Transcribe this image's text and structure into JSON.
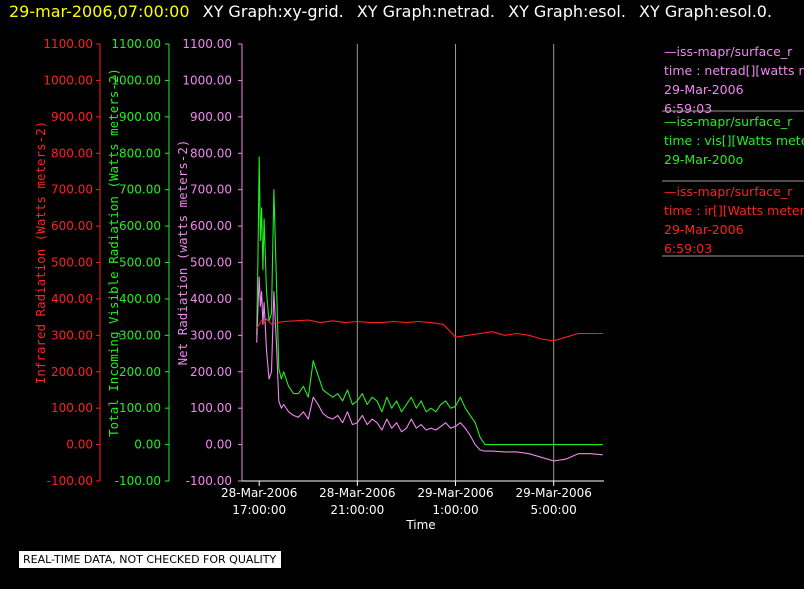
{
  "header": {
    "timestamp": "29-mar-2006,07:00:00",
    "titles": [
      "XY Graph:xy-grid.",
      "XY Graph:netrad.",
      "XY Graph:esol.",
      "XY Graph:esol.0."
    ]
  },
  "notice": "REAL-TIME DATA, NOT CHECKED FOR QUALITY",
  "colors": {
    "ir": "#ff2020",
    "vis": "#22ee22",
    "net": "#ee88ee",
    "grid": "#9a9a9a",
    "axis": "#ffffff"
  },
  "chart_data": {
    "type": "line",
    "xlabel": "Time",
    "x_ticks": [
      {
        "hours": 0,
        "line1": "28-Mar-2006",
        "line2": "17:00:00"
      },
      {
        "hours": 4,
        "line1": "28-Mar-2006",
        "line2": "21:00:00"
      },
      {
        "hours": 8,
        "line1": "29-Mar-2006",
        "line2": "1:00:00"
      },
      {
        "hours": 12,
        "line1": "29-Mar-2006",
        "line2": "5:00:00"
      }
    ],
    "xlim_hours": [
      -0.7,
      14.05
    ],
    "ylim": [
      -100,
      1100
    ],
    "y_ticks": [
      "1100.00",
      "1000.00",
      "900.00",
      "800.00",
      "700.00",
      "600.00",
      "500.00",
      "400.00",
      "300.00",
      "200.00",
      "100.00",
      "0.00",
      "-100.00"
    ],
    "axes": [
      {
        "id": "ir",
        "label": "Infrared Radiation (Watts meters-2)"
      },
      {
        "id": "vis",
        "label": "Total Incoming Visible Radiation (Watts meters-2)"
      },
      {
        "id": "net",
        "label": "Net Radiation (watts meters-2)"
      }
    ],
    "series": [
      {
        "id": "vis",
        "x": [
          -0.1,
          -0.05,
          0.0,
          0.05,
          0.1,
          0.15,
          0.2,
          0.3,
          0.4,
          0.5,
          0.6,
          0.7,
          0.8,
          0.9,
          1.0,
          1.2,
          1.4,
          1.6,
          1.8,
          2.0,
          2.2,
          2.4,
          2.6,
          2.8,
          3.0,
          3.2,
          3.4,
          3.6,
          3.8,
          4.0,
          4.2,
          4.4,
          4.6,
          4.8,
          5.0,
          5.2,
          5.4,
          5.6,
          5.8,
          6.0,
          6.2,
          6.4,
          6.6,
          6.8,
          7.0,
          7.2,
          7.4,
          7.6,
          7.8,
          8.0,
          8.2,
          8.4,
          8.6,
          8.8,
          9.0,
          9.2,
          9.5,
          10.0,
          10.5,
          11.0,
          11.5,
          12.0,
          12.5,
          13.0,
          13.5,
          14.0
        ],
        "y": [
          300,
          520,
          790,
          560,
          650,
          480,
          620,
          420,
          340,
          360,
          700,
          450,
          210,
          180,
          200,
          160,
          140,
          140,
          160,
          130,
          230,
          190,
          150,
          140,
          130,
          140,
          120,
          150,
          110,
          120,
          140,
          110,
          130,
          120,
          90,
          130,
          100,
          120,
          90,
          110,
          130,
          100,
          120,
          90,
          100,
          90,
          110,
          120,
          100,
          105,
          130,
          100,
          80,
          60,
          20,
          0,
          0,
          0,
          0,
          0,
          0,
          0,
          0,
          0,
          0,
          0
        ]
      },
      {
        "id": "net",
        "x": [
          -0.1,
          -0.05,
          0.0,
          0.05,
          0.1,
          0.15,
          0.2,
          0.3,
          0.4,
          0.5,
          0.6,
          0.7,
          0.8,
          0.9,
          1.0,
          1.2,
          1.4,
          1.6,
          1.8,
          2.0,
          2.2,
          2.4,
          2.6,
          2.8,
          3.0,
          3.2,
          3.4,
          3.6,
          3.8,
          4.0,
          4.2,
          4.4,
          4.6,
          4.8,
          5.0,
          5.2,
          5.4,
          5.6,
          5.8,
          6.0,
          6.2,
          6.4,
          6.6,
          6.8,
          7.0,
          7.2,
          7.4,
          7.6,
          7.8,
          8.0,
          8.2,
          8.4,
          8.6,
          8.8,
          9.0,
          9.2,
          9.5,
          10.0,
          10.5,
          11.0,
          11.5,
          12.0,
          12.5,
          13.0,
          13.5,
          14.0
        ],
        "y": [
          280,
          380,
          460,
          380,
          420,
          330,
          390,
          260,
          180,
          200,
          420,
          280,
          120,
          100,
          110,
          90,
          80,
          75,
          90,
          70,
          130,
          110,
          85,
          75,
          70,
          80,
          60,
          90,
          55,
          60,
          80,
          55,
          70,
          60,
          40,
          70,
          45,
          60,
          35,
          45,
          70,
          45,
          55,
          40,
          45,
          40,
          50,
          60,
          45,
          50,
          60,
          45,
          25,
          0,
          -15,
          -18,
          -18,
          -20,
          -20,
          -25,
          -35,
          -45,
          -40,
          -25,
          -25,
          -28
        ]
      },
      {
        "id": "ir",
        "x": [
          -0.1,
          0.0,
          0.1,
          0.2,
          0.3,
          0.5,
          1.0,
          1.5,
          2.0,
          2.5,
          3.0,
          3.5,
          4.0,
          4.5,
          5.0,
          5.5,
          6.0,
          6.5,
          7.0,
          7.5,
          7.8,
          8.0,
          8.5,
          9.0,
          9.5,
          10.0,
          10.5,
          11.0,
          11.5,
          12.0,
          12.5,
          13.0,
          13.5,
          14.0
        ],
        "y": [
          320,
          330,
          340,
          335,
          345,
          330,
          338,
          340,
          342,
          335,
          340,
          335,
          338,
          335,
          335,
          338,
          335,
          338,
          335,
          330,
          310,
          295,
          300,
          305,
          310,
          300,
          305,
          300,
          290,
          285,
          295,
          305,
          305,
          305
        ]
      }
    ]
  },
  "legend": [
    {
      "id": "net",
      "line1": "—iss-mapr/surface_r",
      "line2": "time : netrad[][watts m",
      "line3": "29-Mar-2006",
      "line4": "6:59:03"
    },
    {
      "id": "vis",
      "line1": "—iss-mapr/surface_r",
      "line2": "time : vis[][Watts meter",
      "line3": "29-Mar-200o",
      "line4": ""
    },
    {
      "id": "ir",
      "line1": "—iss-mapr/surface_r",
      "line2": "time : ir[][Watts meters",
      "line3": "29-Mar-2006",
      "line4": "6:59:03"
    }
  ]
}
